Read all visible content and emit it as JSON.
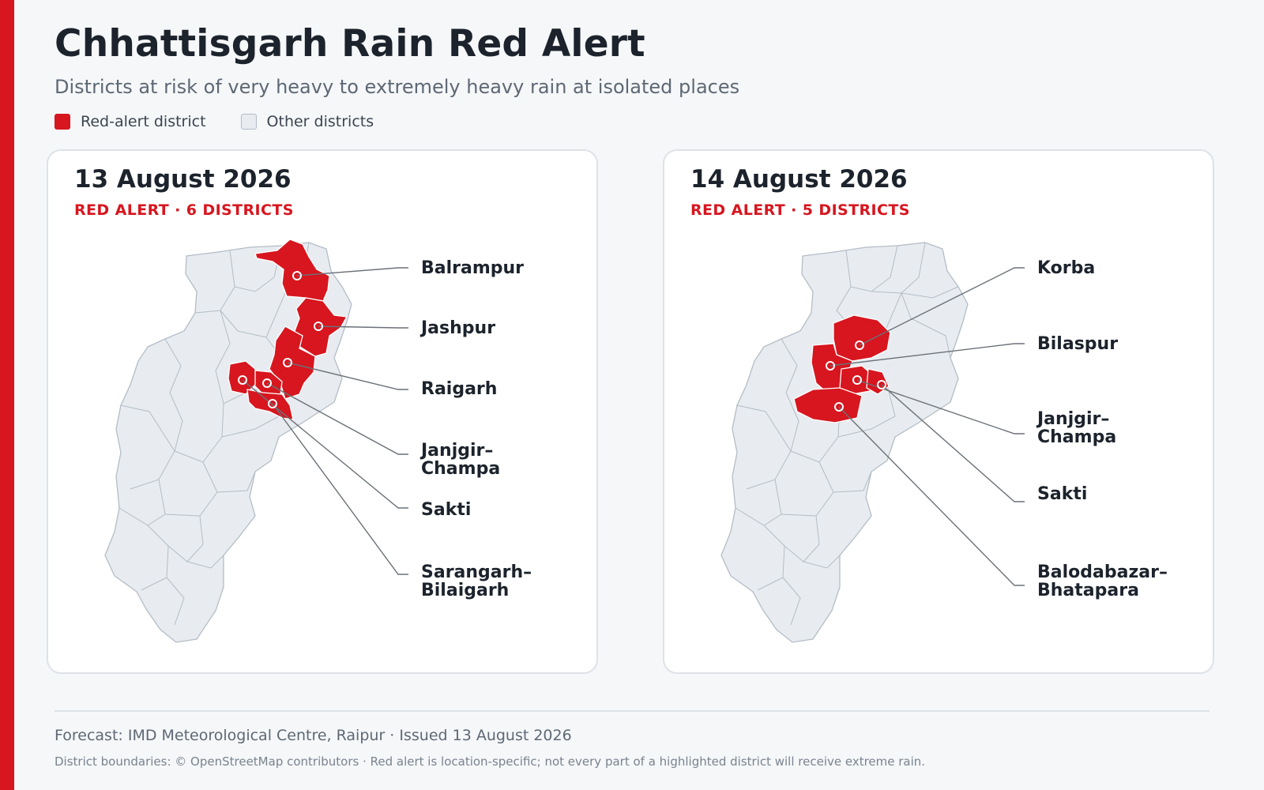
{
  "header": {
    "title": "Chhattisgarh Rain Red Alert",
    "subtitle": "Districts at risk of very heavy to extremely heavy rain at isolated places"
  },
  "legend": {
    "red_label": "Red-alert district",
    "other_label": "Other districts"
  },
  "colors": {
    "accent": "#d7161f",
    "alert_fill": "#d7161f",
    "other_fill": "#e8ecf0",
    "district_border": "#b4bcc6",
    "leader_line": "#6b7178"
  },
  "panels": [
    {
      "date": "13 August 2026",
      "alert_summary": "RED ALERT · 6 DISTRICTS",
      "labels": [
        {
          "lines": [
            "Balrampur"
          ]
        },
        {
          "lines": [
            "Jashpur"
          ]
        },
        {
          "lines": [
            "Raigarh"
          ]
        },
        {
          "lines": [
            "Janjgir–",
            "Champa"
          ]
        },
        {
          "lines": [
            "Sakti"
          ]
        },
        {
          "lines": [
            "Sarangarh–",
            "Bilaigarh"
          ]
        }
      ]
    },
    {
      "date": "14 August 2026",
      "alert_summary": "RED ALERT · 5 DISTRICTS",
      "labels": [
        {
          "lines": [
            "Korba"
          ]
        },
        {
          "lines": [
            "Bilaspur"
          ]
        },
        {
          "lines": [
            "Janjgir–",
            "Champa"
          ]
        },
        {
          "lines": [
            "Sakti"
          ]
        },
        {
          "lines": [
            "Balodabazar–",
            "Bhatapara"
          ]
        }
      ]
    }
  ],
  "footer": {
    "source": "Forecast: IMD Meteorological Centre, Raipur · Issued 13 August 2026",
    "note": "District boundaries: © OpenStreetMap contributors · Red alert is location-specific; not every part of a highlighted district will receive extreme rain."
  }
}
